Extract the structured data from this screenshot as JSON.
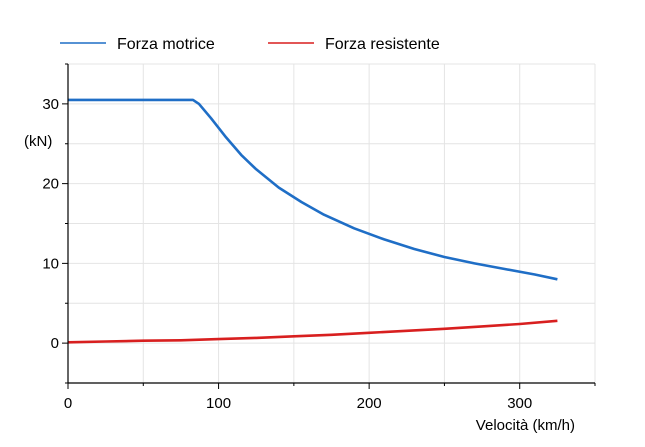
{
  "chart_data": {
    "type": "line",
    "xlabel": "Velocità (km/h)",
    "ylabel": "(kN)",
    "xlim": [
      0,
      350
    ],
    "ylim": [
      -5,
      35
    ],
    "xticks": [
      0,
      100,
      200,
      300
    ],
    "yticks": [
      0,
      10,
      20,
      30
    ],
    "grid": true,
    "legend_position": "top",
    "series": [
      {
        "name": "Forza motrice",
        "color": "#1f6ec6",
        "x": [
          0,
          20,
          40,
          60,
          83,
          87,
          95,
          105,
          115,
          125,
          140,
          155,
          170,
          190,
          210,
          230,
          250,
          270,
          290,
          310,
          325
        ],
        "y": [
          30.5,
          30.5,
          30.5,
          30.5,
          30.5,
          30.0,
          28.2,
          25.8,
          23.6,
          21.8,
          19.5,
          17.7,
          16.1,
          14.4,
          13.0,
          11.8,
          10.8,
          10.0,
          9.3,
          8.6,
          8.0
        ]
      },
      {
        "name": "Forza resistente",
        "color": "#d81f1f",
        "x": [
          0,
          25,
          50,
          75,
          100,
          125,
          150,
          175,
          200,
          225,
          250,
          275,
          300,
          325
        ],
        "y": [
          0.1,
          0.2,
          0.3,
          0.35,
          0.5,
          0.65,
          0.85,
          1.05,
          1.3,
          1.55,
          1.8,
          2.1,
          2.4,
          2.8
        ]
      }
    ]
  }
}
